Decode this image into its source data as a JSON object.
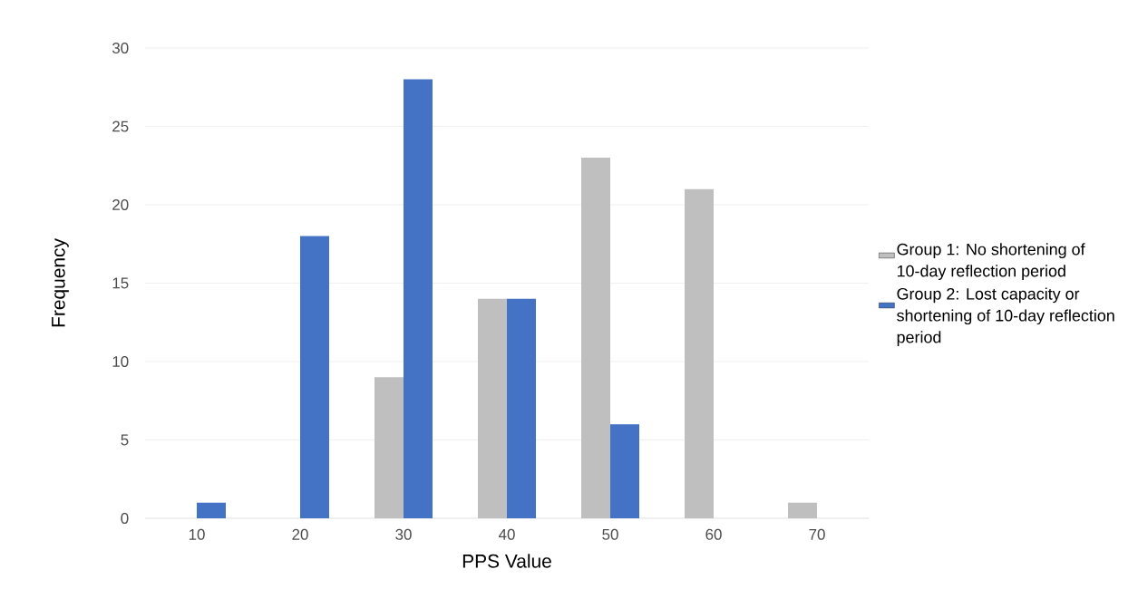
{
  "chart_data": {
    "type": "bar",
    "xlabel": "PPS Value",
    "ylabel": "Frequency",
    "categories": [
      "10",
      "20",
      "30",
      "40",
      "50",
      "60",
      "70"
    ],
    "series": [
      {
        "name": "Group 1: No shortening of 10-day reflection period",
        "color": "#bfbfbf",
        "values": [
          0,
          0,
          9,
          14,
          23,
          21,
          1
        ]
      },
      {
        "name": "Group 2: Lost capacity or shortening of 10-day reflection period",
        "color": "#4472c4",
        "values": [
          1,
          18,
          28,
          14,
          6,
          0,
          0
        ]
      }
    ],
    "ylim": [
      0,
      30
    ],
    "yticks": [
      0,
      5,
      10,
      15,
      20,
      25,
      30
    ],
    "grid": "y",
    "legend": "right"
  }
}
